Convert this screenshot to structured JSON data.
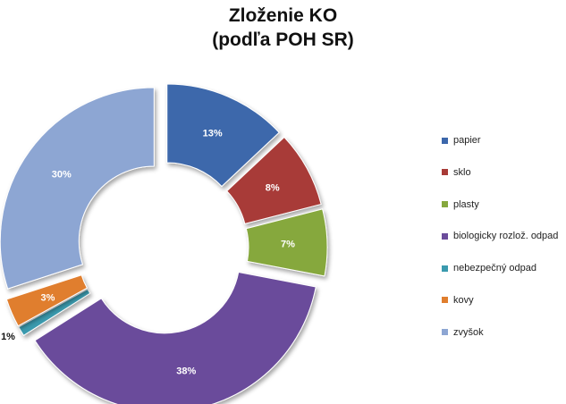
{
  "chart_data": {
    "type": "pie",
    "title_line1": "Zloženie KO",
    "title_line2": "(podľa POH SR)",
    "legend_placement": "right",
    "slices": [
      {
        "name": "papier",
        "value": 13,
        "label": "13%",
        "color": "#3C67AB"
      },
      {
        "name": "sklo",
        "value": 8,
        "label": "8%",
        "color": "#A83B37"
      },
      {
        "name": "plasty",
        "value": 7,
        "label": "7%",
        "color": "#86A83E"
      },
      {
        "name": "biologicky rozlož. odpad",
        "value": 38,
        "label": "38%",
        "color": "#6B4C9B"
      },
      {
        "name": "nebezpečný odpad",
        "value": 1,
        "label": "1%",
        "color": "#3A9AAE"
      },
      {
        "name": "kovy",
        "value": 3,
        "label": "3%",
        "color": "#E07E2E"
      },
      {
        "name": "zvyšok",
        "value": 30,
        "label": "30%",
        "color": "#8DA6D3"
      }
    ]
  }
}
